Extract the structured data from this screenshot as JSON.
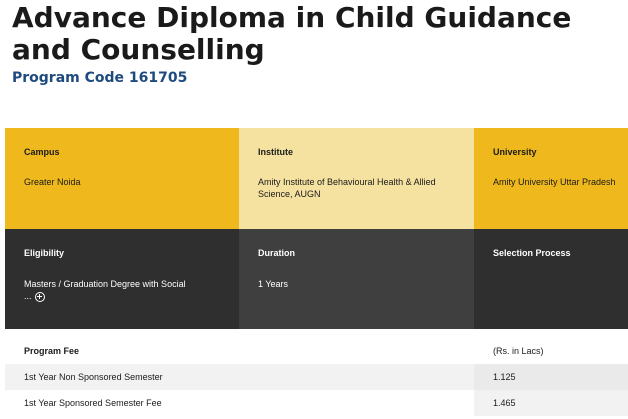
{
  "program": {
    "title": "Advance Diploma in Child Guidance and Counselling",
    "code": "Program Code 161705"
  },
  "details": {
    "campus": {
      "label": "Campus",
      "value": "Greater Noida"
    },
    "institute": {
      "label": "Institute",
      "value": "Amity Institute of Behavioural Health & Allied Science, AUGN"
    },
    "university": {
      "label": "University",
      "value": "Amity University Uttar Pradesh"
    },
    "eligibility": {
      "label": "Eligibility",
      "value": "Masters / Graduation Degree with Social\n..."
    },
    "duration": {
      "label": "Duration",
      "value": "1 Years"
    },
    "selection": {
      "label": "Selection Process",
      "value": ""
    }
  },
  "fees": {
    "header": {
      "label": "Program Fee",
      "unit": "(Rs. in Lacs)"
    },
    "rows": [
      {
        "label": "1st Year Non Sponsored Semester",
        "value": "1.125"
      },
      {
        "label": "1st Year Sponsored Semester Fee",
        "value": "1.465"
      }
    ]
  },
  "colors": {
    "accent": "#efb81c",
    "pale_accent": "#f6e2a0",
    "dark": "#2f2f2f",
    "code_blue": "#1e4a7e"
  },
  "icons": {
    "expand": "circle-plus-icon"
  }
}
